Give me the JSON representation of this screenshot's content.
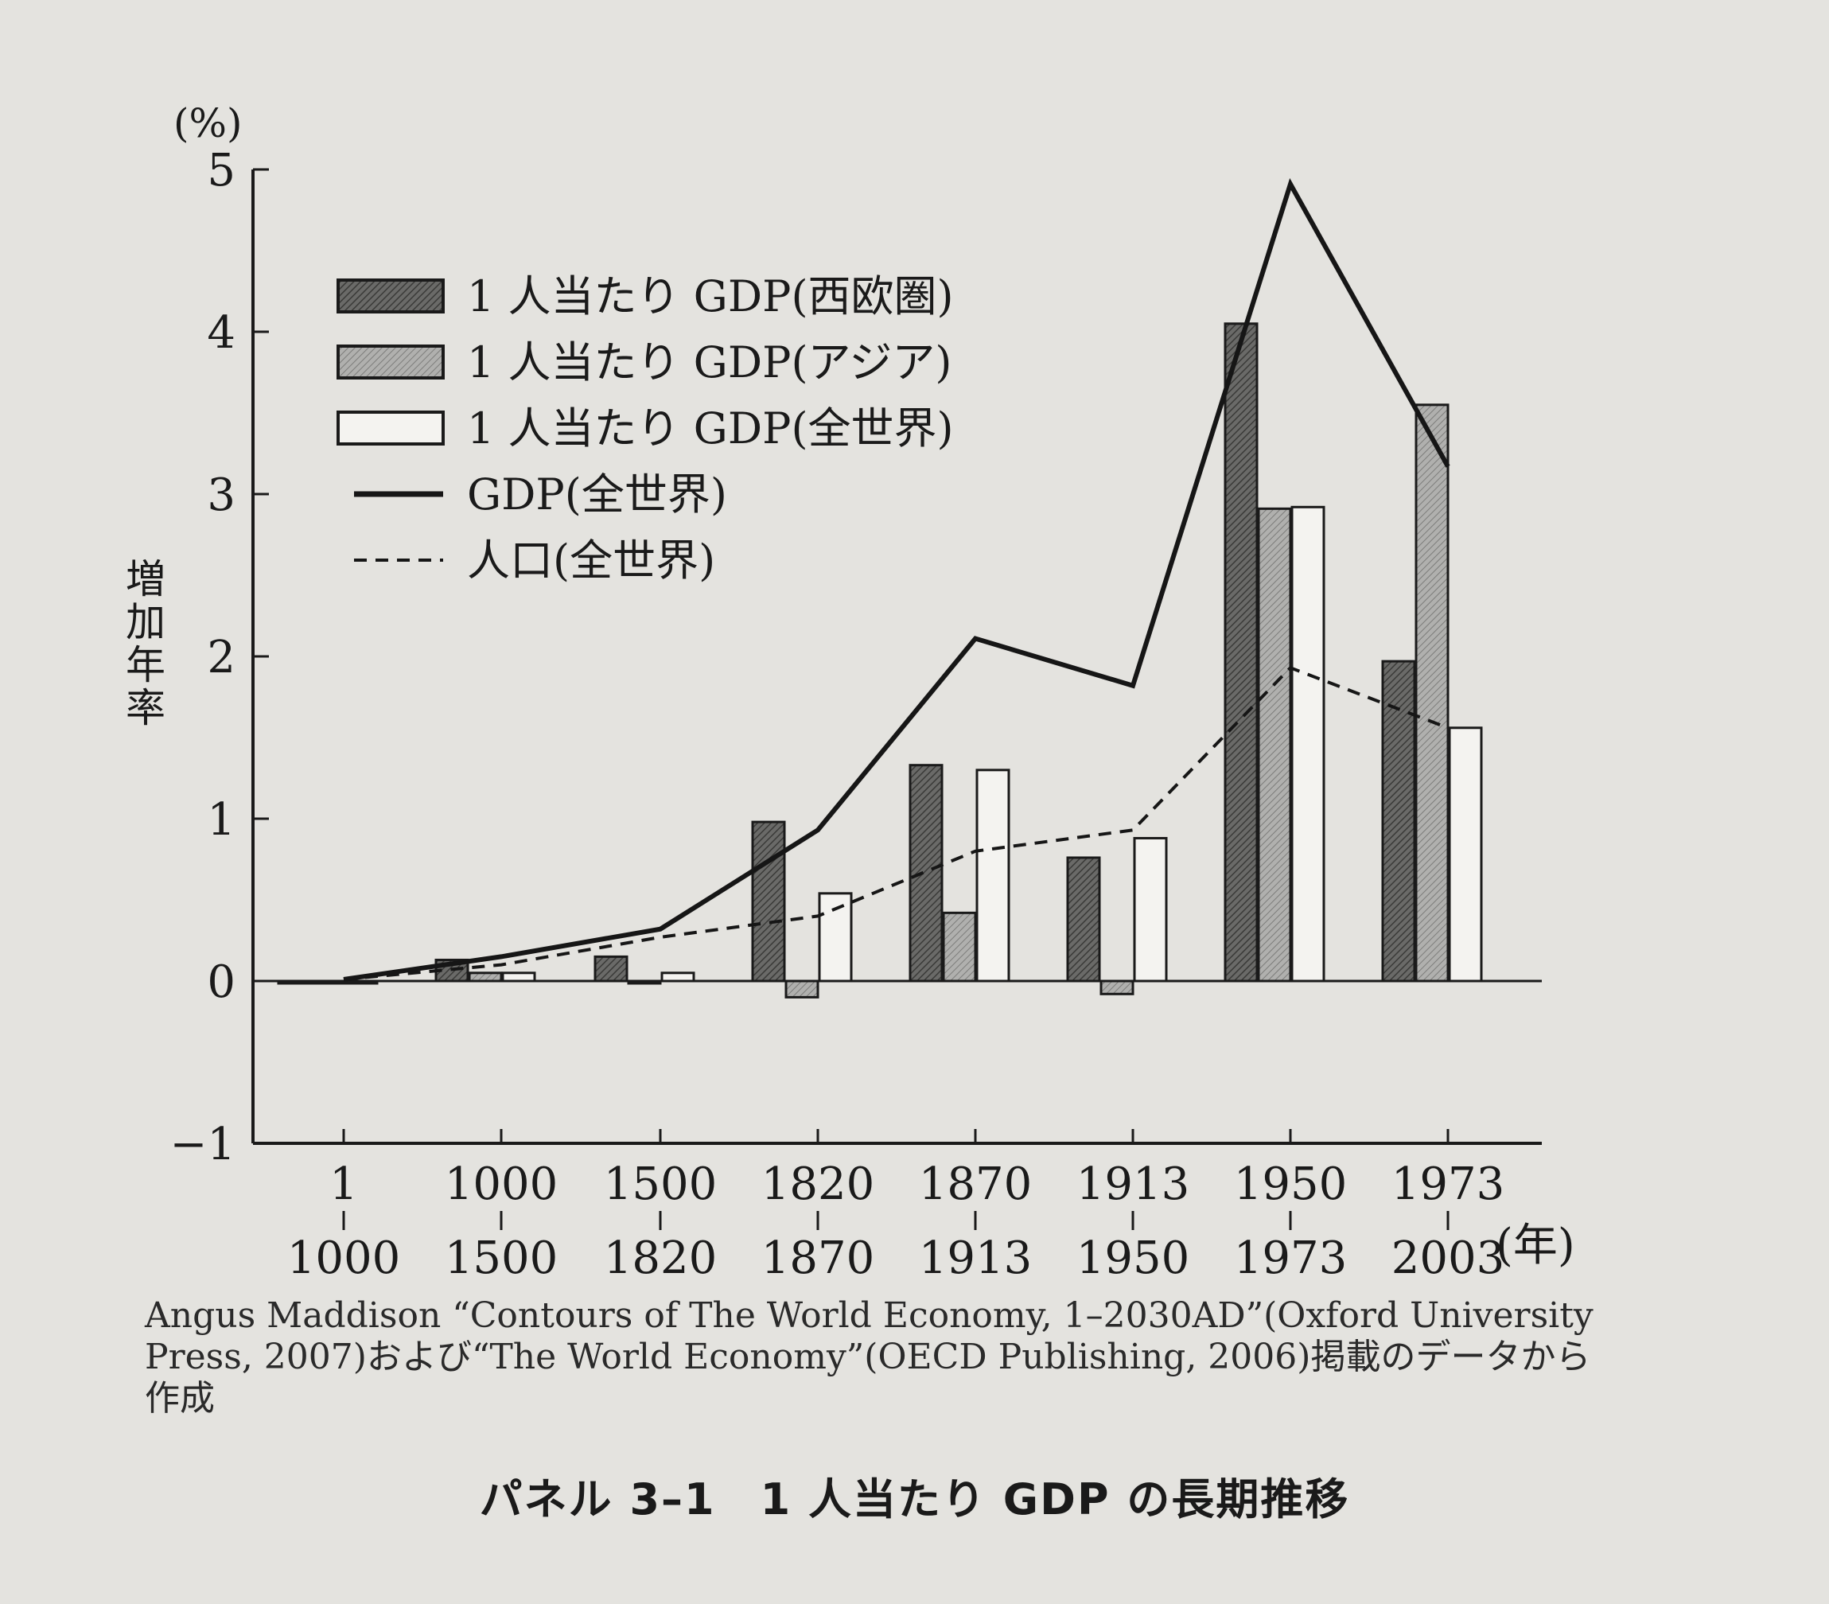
{
  "chart_data": {
    "type": "bar",
    "title": "",
    "unit_label": "(%)",
    "ylabel": "増加年率",
    "xlabel_unit": "(年)",
    "ylim": [
      -1,
      5
    ],
    "yticks": [
      -1,
      0,
      1,
      2,
      3,
      4,
      5
    ],
    "categories": [
      {
        "start": "1",
        "end": "1000"
      },
      {
        "start": "1000",
        "end": "1500"
      },
      {
        "start": "1500",
        "end": "1820"
      },
      {
        "start": "1820",
        "end": "1870"
      },
      {
        "start": "1870",
        "end": "1913"
      },
      {
        "start": "1913",
        "end": "1950"
      },
      {
        "start": "1950",
        "end": "1973"
      },
      {
        "start": "1973",
        "end": "2003"
      }
    ],
    "series": [
      {
        "name": "1 人当たり GDP(西欧圏)",
        "kind": "bar",
        "fill": "dark",
        "values": [
          -0.01,
          0.13,
          0.15,
          0.98,
          1.33,
          0.76,
          4.05,
          1.97
        ]
      },
      {
        "name": "1 人当たり GDP(アジア)",
        "kind": "bar",
        "fill": "mid",
        "values": [
          0.0,
          0.05,
          0.0,
          -0.1,
          0.42,
          -0.08,
          2.91,
          3.55
        ]
      },
      {
        "name": "1 人当たり GDP(全世界)",
        "kind": "bar",
        "fill": "white",
        "values": [
          0.0,
          0.05,
          0.05,
          0.54,
          1.3,
          0.88,
          2.92,
          1.56
        ]
      },
      {
        "name": "GDP(全世界)",
        "kind": "line",
        "style": "solid",
        "values": [
          0.01,
          0.15,
          0.32,
          0.93,
          2.11,
          1.82,
          4.91,
          3.17
        ]
      },
      {
        "name": "人口(全世界)",
        "kind": "line",
        "style": "dashed",
        "values": [
          0.01,
          0.1,
          0.27,
          0.4,
          0.8,
          0.93,
          1.93,
          1.56
        ]
      }
    ],
    "colors": {
      "dark": "#5a5a58",
      "mid": "#9c9c9a",
      "white": "#f4f3f0",
      "line": "#161616"
    },
    "legend_position": "top-left"
  },
  "source_note": "Angus Maddison “Contours of The World Economy, 1–2030AD”(Oxford University Press, 2007)および“The World Economy”(OECD Publishing, 2006)掲載のデータから作成",
  "caption": "パネル 3–1　1 人当たり GDP の長期推移"
}
